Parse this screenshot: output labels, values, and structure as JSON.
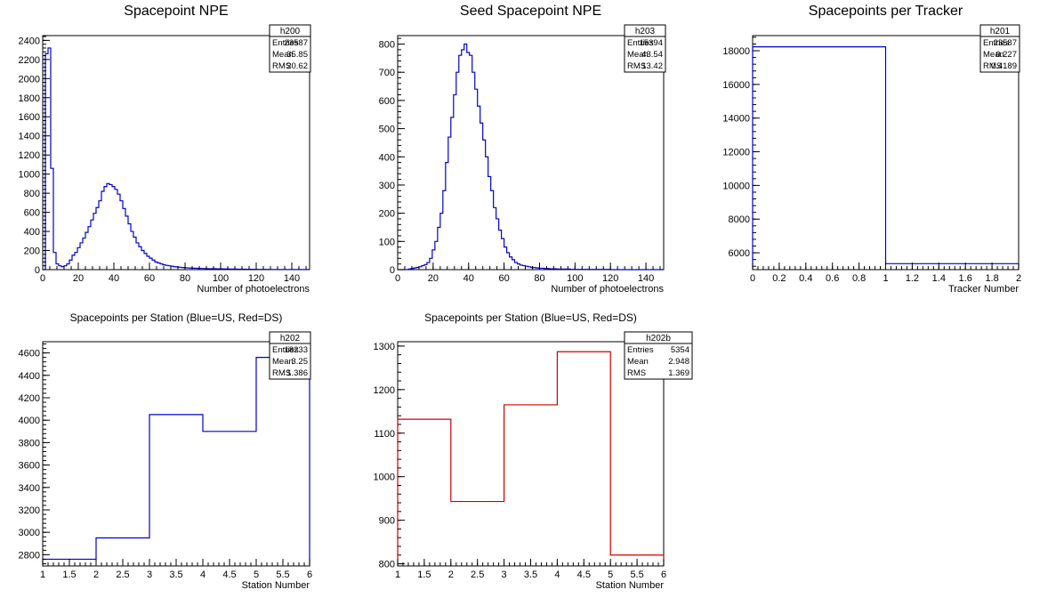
{
  "chart_data": [
    {
      "type": "histogram",
      "title": "Spacepoint NPE",
      "xlabel": "Number of photoelectrons",
      "ylabel": "",
      "color": "#0000cc",
      "xlim": [
        0,
        150
      ],
      "ylim": [
        0,
        2450
      ],
      "xticks": [
        0,
        20,
        40,
        60,
        80,
        100,
        120,
        140
      ],
      "xtick_labels": [
        "0",
        "20",
        "40",
        "60",
        "80",
        "100",
        "120",
        "140"
      ],
      "yticks": [
        0,
        200,
        400,
        600,
        800,
        1000,
        1200,
        1400,
        1600,
        1800,
        2000,
        2200,
        2400
      ],
      "ytick_labels": [
        "0",
        "200",
        "400",
        "600",
        "800",
        "1000",
        "1200",
        "1400",
        "1600",
        "1800",
        "2000",
        "2200",
        "2400"
      ],
      "bin_width": 1.5,
      "values": [
        0,
        2260,
        2320,
        1060,
        180,
        60,
        40,
        30,
        40,
        60,
        100,
        150,
        180,
        230,
        280,
        330,
        390,
        450,
        520,
        590,
        650,
        720,
        820,
        870,
        900,
        890,
        870,
        840,
        790,
        720,
        640,
        560,
        480,
        400,
        340,
        280,
        240,
        200,
        170,
        140,
        120,
        100,
        80,
        70,
        60,
        50,
        45,
        40,
        35,
        30,
        28,
        25,
        22,
        20,
        18,
        16,
        15,
        14,
        13,
        12,
        11,
        10,
        10,
        9,
        9,
        8,
        8,
        8,
        7,
        7,
        6,
        6,
        6,
        5,
        5,
        5,
        4,
        4,
        4,
        4,
        3,
        3,
        3,
        3,
        3,
        2,
        2,
        2,
        2,
        2,
        2,
        2,
        2,
        2,
        2,
        2,
        1,
        1,
        1,
        1
      ],
      "stats": {
        "name": "h200",
        "rows": [
          [
            "Entries",
            "23587"
          ],
          [
            "Mean",
            "35.85"
          ],
          [
            "RMS",
            "20.62"
          ]
        ]
      }
    },
    {
      "type": "histogram",
      "title": "Seed Spacepoint NPE",
      "xlabel": "Number of photoelectrons",
      "ylabel": "",
      "color": "#0000cc",
      "xlim": [
        0,
        150
      ],
      "ylim": [
        0,
        830
      ],
      "xticks": [
        0,
        20,
        40,
        60,
        80,
        100,
        120,
        140
      ],
      "xtick_labels": [
        "0",
        "20",
        "40",
        "60",
        "80",
        "100",
        "120",
        "140"
      ],
      "yticks": [
        0,
        100,
        200,
        300,
        400,
        500,
        600,
        700,
        800
      ],
      "ytick_labels": [
        "0",
        "100",
        "200",
        "300",
        "400",
        "500",
        "600",
        "700",
        "800"
      ],
      "bin_width": 1.5,
      "values": [
        0,
        0,
        0,
        0,
        2,
        4,
        6,
        8,
        10,
        14,
        18,
        25,
        40,
        70,
        100,
        150,
        200,
        280,
        380,
        470,
        540,
        620,
        700,
        760,
        780,
        800,
        770,
        760,
        700,
        640,
        580,
        520,
        460,
        400,
        330,
        280,
        220,
        180,
        140,
        110,
        80,
        60,
        45,
        35,
        25,
        20,
        16,
        14,
        12,
        10,
        8,
        7,
        6,
        5,
        5,
        4,
        4,
        3,
        3,
        3,
        2,
        2,
        2,
        2,
        2,
        1,
        1,
        1,
        1,
        1,
        1,
        1,
        1,
        1,
        1,
        1,
        1,
        1,
        1,
        1,
        0,
        0,
        0,
        0,
        0,
        0,
        0,
        0,
        0,
        0,
        0,
        0,
        0,
        0,
        0,
        0,
        0,
        0,
        0,
        0
      ],
      "stats": {
        "name": "h203",
        "rows": [
          [
            "Entries",
            "15394"
          ],
          [
            "Mean",
            "43.54"
          ],
          [
            "RMS",
            "13.42"
          ]
        ]
      }
    },
    {
      "type": "histogram",
      "title": "Spacepoints per Tracker",
      "xlabel": "Tracker Number",
      "ylabel": "",
      "color": "#0000cc",
      "xlim": [
        0,
        2
      ],
      "ylim": [
        5000,
        18900
      ],
      "xticks": [
        0,
        0.2,
        0.4,
        0.6,
        0.8,
        1,
        1.2,
        1.4,
        1.6,
        1.8,
        2
      ],
      "xtick_labels": [
        "0",
        "0.2",
        "0.4",
        "0.6",
        "0.8",
        "1",
        "1.2",
        "1.4",
        "1.6",
        "1.8",
        "2"
      ],
      "yticks": [
        6000,
        8000,
        10000,
        12000,
        14000,
        16000,
        18000
      ],
      "ytick_labels": [
        "6000",
        "8000",
        "10000",
        "12000",
        "14000",
        "16000",
        "18000"
      ],
      "bin_width": 1,
      "values": [
        18233,
        5354
      ],
      "stats": {
        "name": "h201",
        "rows": [
          [
            "Entries",
            "23587"
          ],
          [
            "Mean",
            "0.227"
          ],
          [
            "RMS",
            "0.4189"
          ]
        ]
      }
    },
    {
      "type": "histogram",
      "title": "Spacepoints per Station (Blue=US, Red=DS)",
      "xlabel": "Station Number",
      "ylabel": "",
      "color": "#0000cc",
      "xlim": [
        1,
        6
      ],
      "ylim": [
        2700,
        4700
      ],
      "xticks": [
        1,
        1.5,
        2,
        2.5,
        3,
        3.5,
        4,
        4.5,
        5,
        5.5,
        6
      ],
      "xtick_labels": [
        "1",
        "1.5",
        "2",
        "2.5",
        "3",
        "3.5",
        "4",
        "4.5",
        "5",
        "5.5",
        "6"
      ],
      "yticks": [
        2800,
        3000,
        3200,
        3400,
        3600,
        3800,
        4000,
        4200,
        4400,
        4600
      ],
      "ytick_labels": [
        "2800",
        "3000",
        "3200",
        "3400",
        "3600",
        "3800",
        "4000",
        "4200",
        "4400",
        "4600"
      ],
      "bin_width": 1,
      "values": [
        2760,
        2950,
        4050,
        3900,
        4560
      ],
      "stats": {
        "name": "h202",
        "rows": [
          [
            "Entries",
            "18233"
          ],
          [
            "Mean",
            "3.25"
          ],
          [
            "RMS",
            "1.386"
          ]
        ]
      }
    },
    {
      "type": "histogram",
      "title": "Spacepoints per Station (Blue=US, Red=DS)",
      "xlabel": "Station Number",
      "ylabel": "",
      "color": "#cc0000",
      "xlim": [
        1,
        6
      ],
      "ylim": [
        795,
        1310
      ],
      "xticks": [
        1,
        1.5,
        2,
        2.5,
        3,
        3.5,
        4,
        4.5,
        5,
        5.5,
        6
      ],
      "xtick_labels": [
        "1",
        "1.5",
        "2",
        "2.5",
        "3",
        "3.5",
        "4",
        "4.5",
        "5",
        "5.5",
        "6"
      ],
      "yticks": [
        800,
        900,
        1000,
        1100,
        1200,
        1300
      ],
      "ytick_labels": [
        "800",
        "900",
        "1000",
        "1100",
        "1200",
        "1300"
      ],
      "bin_width": 1,
      "values": [
        1132,
        943,
        1165,
        1287,
        820
      ],
      "stats": {
        "name": "h202b",
        "rows": [
          [
            "Entries",
            "5354"
          ],
          [
            "Mean",
            "2.948"
          ],
          [
            "RMS",
            "1.369"
          ]
        ]
      }
    }
  ]
}
